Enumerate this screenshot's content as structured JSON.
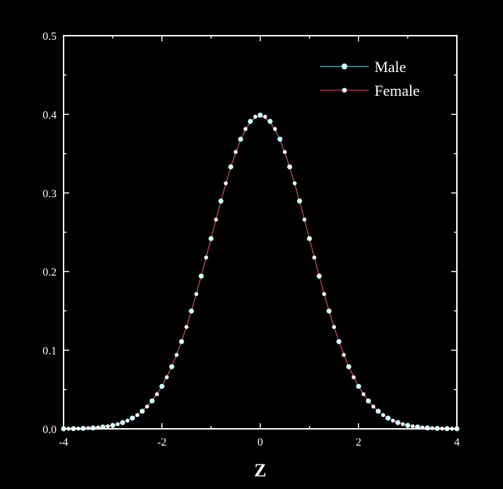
{
  "chart_data": {
    "type": "scatter",
    "title": "",
    "xlabel": "Z",
    "ylabel": "",
    "xlim": [
      -4,
      4
    ],
    "ylim": [
      0,
      0.5
    ],
    "x_ticks": [
      {
        "value": -4,
        "label": "-4"
      },
      {
        "value": -2,
        "label": "-2"
      },
      {
        "value": 0,
        "label": "0"
      },
      {
        "value": 2,
        "label": "2"
      },
      {
        "value": 4,
        "label": "4"
      }
    ],
    "y_ticks": [
      {
        "value": 0,
        "label": "0.0"
      },
      {
        "value": 0.1,
        "label": "0.1"
      },
      {
        "value": 0.2,
        "label": "0.2"
      },
      {
        "value": 0.3,
        "label": "0.3"
      },
      {
        "value": 0.4,
        "label": "0.4"
      },
      {
        "value": 0.5,
        "label": "0.5"
      }
    ],
    "grid": false,
    "legend_position": "top-right",
    "colors": {
      "background": "#000000",
      "axes": "#ffffff",
      "male_line": "#33cccc",
      "male_marker": "#ccffff",
      "female_line": "#cc3366",
      "female_marker": "#ffffff"
    },
    "series": [
      {
        "name": "Male",
        "x": [
          -4.0,
          -3.8,
          -3.6,
          -3.4,
          -3.2,
          -3.0,
          -2.8,
          -2.6,
          -2.4,
          -2.2,
          -2.0,
          -1.8,
          -1.6,
          -1.4,
          -1.2,
          -1.0,
          -0.8,
          -0.6,
          -0.4,
          -0.2,
          0.0,
          0.2,
          0.4,
          0.6,
          0.8,
          1.0,
          1.2,
          1.4,
          1.6,
          1.8,
          2.0,
          2.2,
          2.4,
          2.6,
          2.8,
          3.0,
          3.2,
          3.4,
          3.6,
          3.8,
          4.0
        ],
        "y": [
          0.0001,
          0.0003,
          0.0006,
          0.0012,
          0.0024,
          0.0044,
          0.0079,
          0.0136,
          0.0224,
          0.0355,
          0.054,
          0.079,
          0.1109,
          0.1497,
          0.1942,
          0.242,
          0.2897,
          0.3332,
          0.3683,
          0.391,
          0.3989,
          0.391,
          0.3683,
          0.3332,
          0.2897,
          0.242,
          0.1942,
          0.1497,
          0.1109,
          0.079,
          0.054,
          0.0355,
          0.0224,
          0.0136,
          0.0079,
          0.0044,
          0.0024,
          0.0012,
          0.0006,
          0.0003,
          0.0001
        ]
      },
      {
        "name": "Female",
        "x": [
          -3.9,
          -3.7,
          -3.5,
          -3.3,
          -3.1,
          -2.9,
          -2.7,
          -2.5,
          -2.3,
          -2.1,
          -1.9,
          -1.7,
          -1.5,
          -1.3,
          -1.1,
          -0.9,
          -0.7,
          -0.5,
          -0.3,
          -0.1,
          0.1,
          0.3,
          0.5,
          0.7,
          0.9,
          1.1,
          1.3,
          1.5,
          1.7,
          1.9,
          2.1,
          2.3,
          2.5,
          2.7,
          2.9,
          3.1,
          3.3,
          3.5,
          3.7,
          3.9
        ],
        "y": [
          0.0002,
          0.0004,
          0.0009,
          0.0017,
          0.0033,
          0.006,
          0.0104,
          0.0175,
          0.0283,
          0.044,
          0.0656,
          0.094,
          0.1295,
          0.1714,
          0.2179,
          0.2661,
          0.3123,
          0.3521,
          0.3814,
          0.397,
          0.397,
          0.3814,
          0.3521,
          0.3123,
          0.2661,
          0.2179,
          0.1714,
          0.1295,
          0.094,
          0.0656,
          0.044,
          0.0283,
          0.0175,
          0.0104,
          0.006,
          0.0033,
          0.0017,
          0.0009,
          0.0004,
          0.0002
        ]
      }
    ]
  }
}
